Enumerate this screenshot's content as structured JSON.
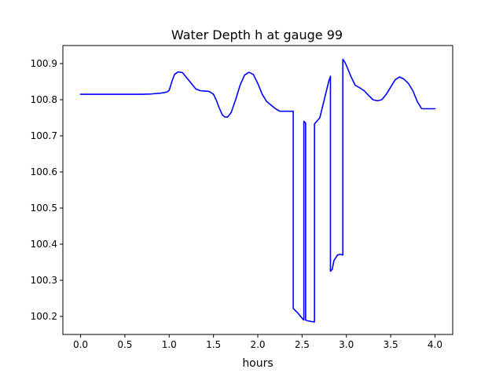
{
  "chart_data": {
    "type": "line",
    "title": "Water Depth h at gauge 99",
    "xlabel": "hours",
    "ylabel": "",
    "xlim": [
      -0.2,
      4.2
    ],
    "ylim": [
      100.15,
      100.95
    ],
    "xticks": [
      0.0,
      0.5,
      1.0,
      1.5,
      2.0,
      2.5,
      3.0,
      3.5,
      4.0
    ],
    "xtick_labels": [
      "0.0",
      "0.5",
      "1.0",
      "1.5",
      "2.0",
      "2.5",
      "3.0",
      "3.5",
      "4.0"
    ],
    "yticks": [
      100.2,
      100.3,
      100.4,
      100.5,
      100.6,
      100.7,
      100.8,
      100.9
    ],
    "ytick_labels": [
      "100.2",
      "100.3",
      "100.4",
      "100.5",
      "100.6",
      "100.7",
      "100.8",
      "100.9"
    ],
    "grid": false,
    "series": [
      {
        "color": "#0000ff",
        "x": [
          0.0,
          0.5,
          0.7,
          0.8,
          0.9,
          0.95,
          0.98,
          1.0,
          1.03,
          1.06,
          1.1,
          1.15,
          1.2,
          1.25,
          1.3,
          1.35,
          1.4,
          1.45,
          1.5,
          1.53,
          1.56,
          1.6,
          1.63,
          1.66,
          1.7,
          1.75,
          1.8,
          1.85,
          1.9,
          1.95,
          2.0,
          2.05,
          2.1,
          2.15,
          2.2,
          2.25,
          2.3,
          2.35,
          2.4,
          2.4,
          2.45,
          2.5,
          2.52,
          2.52,
          2.53,
          2.54,
          2.54,
          2.56,
          2.6,
          2.64,
          2.64,
          2.7,
          2.75,
          2.8,
          2.82,
          2.82,
          2.84,
          2.86,
          2.9,
          2.93,
          2.96,
          2.96,
          2.98,
          3.0,
          3.05,
          3.1,
          3.15,
          3.2,
          3.25,
          3.3,
          3.35,
          3.4,
          3.45,
          3.5,
          3.55,
          3.6,
          3.65,
          3.7,
          3.75,
          3.8,
          3.85,
          3.9,
          3.95,
          4.0
        ],
        "y": [
          100.815,
          100.815,
          100.815,
          100.816,
          100.818,
          100.82,
          100.822,
          100.826,
          100.85,
          100.87,
          100.877,
          100.875,
          100.86,
          100.845,
          100.83,
          100.825,
          100.824,
          100.823,
          100.815,
          100.8,
          100.78,
          100.758,
          100.752,
          100.752,
          100.765,
          100.8,
          100.84,
          100.868,
          100.876,
          100.87,
          100.845,
          100.815,
          100.795,
          100.785,
          100.775,
          100.768,
          100.768,
          100.768,
          100.768,
          100.222,
          100.21,
          100.195,
          100.19,
          100.74,
          100.738,
          100.735,
          100.19,
          100.188,
          100.186,
          100.185,
          100.733,
          100.75,
          100.8,
          100.85,
          100.865,
          100.325,
          100.33,
          100.355,
          100.37,
          100.372,
          100.37,
          100.912,
          100.905,
          100.895,
          100.865,
          100.84,
          100.833,
          100.825,
          100.812,
          100.8,
          100.797,
          100.8,
          100.815,
          100.835,
          100.855,
          100.863,
          100.857,
          100.845,
          100.825,
          100.795,
          100.775,
          100.775,
          100.775,
          100.775
        ]
      }
    ]
  }
}
